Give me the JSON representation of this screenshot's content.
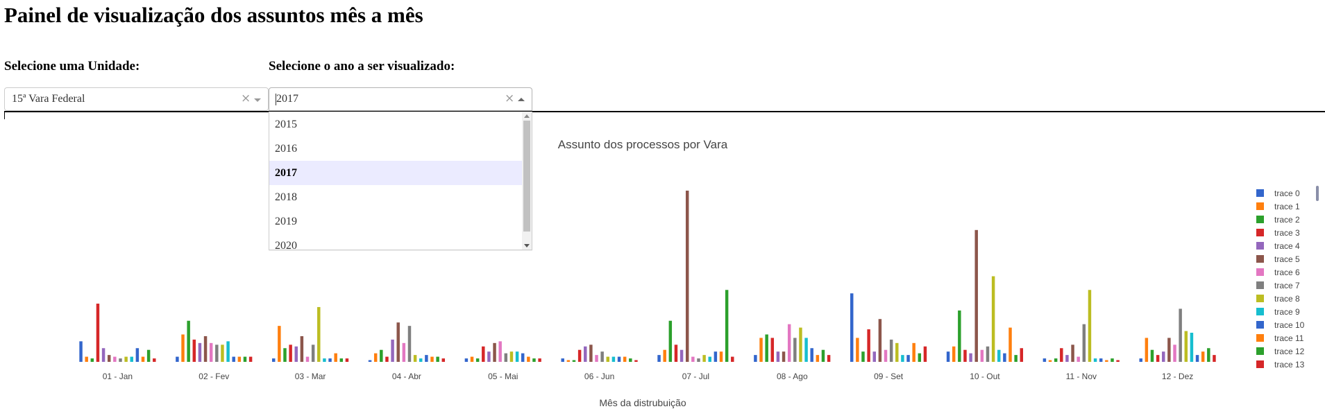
{
  "page": {
    "title": "Painel de visualização dos assuntos mês a mês"
  },
  "controls": {
    "unit_label": "Selecione uma Unidade:",
    "unit_value": "15ª Vara Federal",
    "year_label": "Selecione o ano a ser visualizado:",
    "year_value": "2017",
    "clear_symbol": "×"
  },
  "year_dropdown": {
    "options": [
      "2015",
      "2016",
      "2017",
      "2018",
      "2019",
      "2020"
    ],
    "selected": "2017"
  },
  "chart_data": {
    "type": "bar",
    "title": "Assunto dos processos por Vara",
    "xlabel": "Mês da distrubuição",
    "ylabel": "",
    "categories": [
      "01 - Jan",
      "02 - Fev",
      "03 - Mar",
      "04 - Abr",
      "05 - Mai",
      "06 - Jun",
      "07 - Jul",
      "08 - Ago",
      "09 - Set",
      "10 - Out",
      "11 - Nov",
      "12 - Dez"
    ],
    "ylim": [
      0,
      100
    ],
    "legend": "right, scrollable",
    "series": [
      {
        "name": "trace 0",
        "color": "#3366cc",
        "values": [
          12,
          3,
          2,
          1,
          2,
          2,
          4,
          4,
          40,
          6,
          2,
          2
        ]
      },
      {
        "name": "trace 1",
        "color": "#ff7f0e",
        "values": [
          3,
          16,
          21,
          5,
          3,
          1,
          7,
          14,
          14,
          9,
          1,
          14
        ]
      },
      {
        "name": "trace 2",
        "color": "#2ca02c",
        "values": [
          2,
          24,
          8,
          7,
          2,
          1,
          24,
          16,
          6,
          30,
          2,
          7
        ]
      },
      {
        "name": "trace 3",
        "color": "#d62728",
        "values": [
          34,
          13,
          10,
          3,
          9,
          7,
          10,
          14,
          19,
          7,
          8,
          4
        ]
      },
      {
        "name": "trace 4",
        "color": "#9467bd",
        "values": [
          8,
          11,
          9,
          13,
          6,
          9,
          7,
          6,
          6,
          5,
          4,
          6
        ]
      },
      {
        "name": "trace 5",
        "color": "#8c564b",
        "values": [
          4,
          15,
          15,
          23,
          11,
          10,
          100,
          6,
          25,
          77,
          10,
          14
        ]
      },
      {
        "name": "trace 6",
        "color": "#e377c2",
        "values": [
          3,
          11,
          3,
          11,
          12,
          4,
          3,
          22,
          7,
          7,
          3,
          10
        ]
      },
      {
        "name": "trace 7",
        "color": "#7f7f7f",
        "values": [
          2,
          10,
          10,
          21,
          5,
          6,
          2,
          14,
          13,
          9,
          22,
          31
        ]
      },
      {
        "name": "trace 8",
        "color": "#bcbd22",
        "values": [
          3,
          10,
          32,
          4,
          6,
          3,
          4,
          20,
          11,
          50,
          42,
          18
        ]
      },
      {
        "name": "trace 9",
        "color": "#17becf",
        "values": [
          3,
          12,
          2,
          2,
          6,
          3,
          3,
          14,
          4,
          7,
          2,
          17
        ]
      },
      {
        "name": "trace 10",
        "color": "#3366cc",
        "values": [
          8,
          3,
          2,
          4,
          5,
          3,
          6,
          8,
          4,
          5,
          2,
          4
        ]
      },
      {
        "name": "trace 11",
        "color": "#ff7f0e",
        "values": [
          3,
          3,
          5,
          3,
          3,
          3,
          6,
          4,
          11,
          20,
          1,
          6
        ]
      },
      {
        "name": "trace 12",
        "color": "#2ca02c",
        "values": [
          7,
          3,
          2,
          3,
          2,
          2,
          42,
          7,
          5,
          4,
          2,
          8
        ]
      },
      {
        "name": "trace 13",
        "color": "#d62728",
        "values": [
          2,
          3,
          2,
          2,
          2,
          1,
          3,
          4,
          9,
          8,
          1,
          4
        ]
      }
    ]
  }
}
